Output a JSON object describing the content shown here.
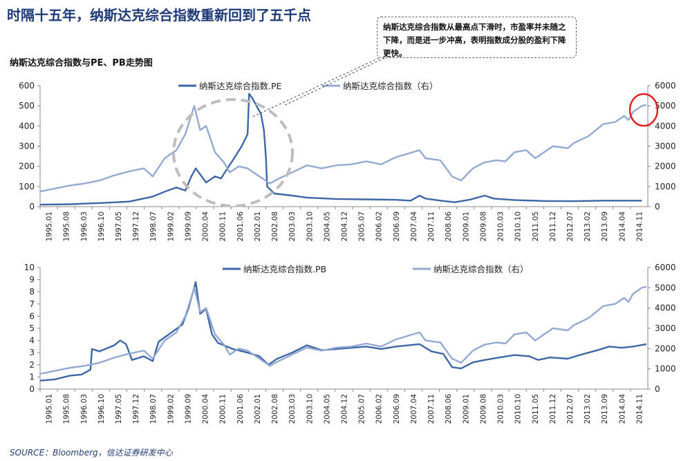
{
  "header": {
    "title": "时隔十五年，纳斯达克综合指数重新回到了五千点",
    "subtitle": "纳斯达克综合指数与PE、PB走势图",
    "callout": "纳斯达克综合指数从最高点下滑时，市盈率并未随之下降，而是进一步冲高，表明指数成分股的盈利下降更快。",
    "source": "SOURCE：Bloomberg，信达证券研发中心"
  },
  "colors": {
    "dark": "#3c66a6",
    "light": "#93a9d2",
    "circle_gray": "#bdbdbd",
    "circle_red": "#e02020"
  },
  "x_ticks": [
    "1995.01",
    "1995.08",
    "1996.03",
    "1996.10",
    "1997.05",
    "1997.12",
    "1998.07",
    "1999.02",
    "1999.09",
    "2000.04",
    "2000.11",
    "2001.06",
    "2002.01",
    "2002.08",
    "2003.03",
    "2003.10",
    "2004.05",
    "2004.12",
    "2005.07",
    "2006.02",
    "2006.09",
    "2007.04",
    "2007.11",
    "2008.06",
    "2009.01",
    "2009.08",
    "2010.03",
    "2010.10",
    "2011.05",
    "2011.12",
    "2012.07",
    "2013.02",
    "2013.09",
    "2014.04",
    "2014.11"
  ],
  "chart_data": [
    {
      "type": "line",
      "legend": [
        "纳斯达克综合指数.PE",
        "纳斯达克综合指数（右）"
      ],
      "y_left": {
        "range": [
          0,
          600
        ],
        "ticks": [
          "0",
          "100",
          "200",
          "300",
          "400",
          "500",
          "600"
        ]
      },
      "y_right": {
        "range": [
          0,
          6000
        ],
        "ticks": [
          "0",
          "1000",
          "2000",
          "3000",
          "4000",
          "5000",
          "6000"
        ]
      },
      "x_range": [
        1995.0,
        2015.5
      ],
      "series": [
        {
          "name": "纳斯达克综合指数.PE",
          "axis": "left",
          "points": [
            [
              1995.0,
              10
            ],
            [
              1996.0,
              12
            ],
            [
              1997.0,
              18
            ],
            [
              1998.0,
              25
            ],
            [
              1998.8,
              50
            ],
            [
              1999.3,
              80
            ],
            [
              1999.6,
              95
            ],
            [
              1999.9,
              80
            ],
            [
              2000.1,
              150
            ],
            [
              2000.25,
              190
            ],
            [
              2000.4,
              160
            ],
            [
              2000.6,
              120
            ],
            [
              2000.9,
              150
            ],
            [
              2001.1,
              140
            ],
            [
              2001.3,
              185
            ],
            [
              2001.5,
              230
            ],
            [
              2001.8,
              300
            ],
            [
              2002.0,
              360
            ],
            [
              2002.05,
              560
            ],
            [
              2002.15,
              540
            ],
            [
              2002.3,
              500
            ],
            [
              2002.45,
              460
            ],
            [
              2002.55,
              380
            ],
            [
              2002.62,
              240
            ],
            [
              2002.66,
              100
            ],
            [
              2002.9,
              65
            ],
            [
              2003.5,
              55
            ],
            [
              2004.0,
              45
            ],
            [
              2005.0,
              38
            ],
            [
              2006.0,
              36
            ],
            [
              2007.0,
              34
            ],
            [
              2007.5,
              30
            ],
            [
              2007.8,
              55
            ],
            [
              2008.0,
              40
            ],
            [
              2008.5,
              30
            ],
            [
              2009.0,
              22
            ],
            [
              2009.5,
              35
            ],
            [
              2010.0,
              55
            ],
            [
              2010.3,
              40
            ],
            [
              2011.0,
              33
            ],
            [
              2012.0,
              28
            ],
            [
              2013.0,
              27
            ],
            [
              2014.0,
              30
            ],
            [
              2015.3,
              30
            ]
          ]
        },
        {
          "name": "纳斯达克综合指数（右）",
          "axis": "right",
          "points": [
            [
              1995.0,
              750
            ],
            [
              1995.5,
              900
            ],
            [
              1996.0,
              1050
            ],
            [
              1996.5,
              1150
            ],
            [
              1997.0,
              1300
            ],
            [
              1997.5,
              1550
            ],
            [
              1998.0,
              1750
            ],
            [
              1998.5,
              1900
            ],
            [
              1998.8,
              1500
            ],
            [
              1999.2,
              2400
            ],
            [
              1999.6,
              2800
            ],
            [
              1999.9,
              3600
            ],
            [
              2000.2,
              5000
            ],
            [
              2000.4,
              3800
            ],
            [
              2000.6,
              4000
            ],
            [
              2000.9,
              2700
            ],
            [
              2001.2,
              2200
            ],
            [
              2001.4,
              1700
            ],
            [
              2001.7,
              2000
            ],
            [
              2002.0,
              1900
            ],
            [
              2002.4,
              1500
            ],
            [
              2002.75,
              1150
            ],
            [
              2003.0,
              1350
            ],
            [
              2003.5,
              1700
            ],
            [
              2004.0,
              2050
            ],
            [
              2004.5,
              1900
            ],
            [
              2005.0,
              2050
            ],
            [
              2005.5,
              2100
            ],
            [
              2006.0,
              2250
            ],
            [
              2006.5,
              2100
            ],
            [
              2007.0,
              2450
            ],
            [
              2007.8,
              2800
            ],
            [
              2008.0,
              2400
            ],
            [
              2008.5,
              2300
            ],
            [
              2008.9,
              1500
            ],
            [
              2009.2,
              1300
            ],
            [
              2009.6,
              1900
            ],
            [
              2010.0,
              2200
            ],
            [
              2010.4,
              2300
            ],
            [
              2010.7,
              2250
            ],
            [
              2011.0,
              2700
            ],
            [
              2011.4,
              2800
            ],
            [
              2011.7,
              2400
            ],
            [
              2012.0,
              2700
            ],
            [
              2012.3,
              3000
            ],
            [
              2012.8,
              2900
            ],
            [
              2013.0,
              3150
            ],
            [
              2013.5,
              3500
            ],
            [
              2014.0,
              4100
            ],
            [
              2014.4,
              4200
            ],
            [
              2014.7,
              4500
            ],
            [
              2014.85,
              4300
            ],
            [
              2015.0,
              4700
            ],
            [
              2015.3,
              5000
            ],
            [
              2015.45,
              5050
            ]
          ]
        }
      ]
    },
    {
      "type": "line",
      "legend": [
        "纳斯达克综合指数.PB",
        "纳斯达克综合指数（右）"
      ],
      "y_left": {
        "range": [
          0,
          10
        ],
        "ticks": [
          "0",
          "1",
          "2",
          "3",
          "4",
          "5",
          "6",
          "7",
          "8",
          "9",
          "10"
        ]
      },
      "y_right": {
        "range": [
          0,
          6000
        ],
        "ticks": [
          "0",
          "1000",
          "2000",
          "3000",
          "4000",
          "5000",
          "6000"
        ]
      },
      "x_range": [
        1995.0,
        2015.5
      ],
      "series": [
        {
          "name": "纳斯达克综合指数.PB",
          "axis": "left",
          "points": [
            [
              1995.0,
              0.7
            ],
            [
              1995.5,
              0.8
            ],
            [
              1996.0,
              1.1
            ],
            [
              1996.4,
              1.2
            ],
            [
              1996.7,
              1.6
            ],
            [
              1996.75,
              3.3
            ],
            [
              1997.0,
              3.1
            ],
            [
              1997.5,
              3.6
            ],
            [
              1997.7,
              4.0
            ],
            [
              1997.9,
              3.7
            ],
            [
              1998.1,
              2.4
            ],
            [
              1998.5,
              2.7
            ],
            [
              1998.8,
              2.3
            ],
            [
              1999.0,
              3.9
            ],
            [
              1999.4,
              4.6
            ],
            [
              1999.8,
              5.3
            ],
            [
              2000.0,
              6.6
            ],
            [
              2000.25,
              8.8
            ],
            [
              2000.4,
              6.2
            ],
            [
              2000.6,
              6.6
            ],
            [
              2000.8,
              4.5
            ],
            [
              2001.0,
              3.8
            ],
            [
              2001.5,
              3.3
            ],
            [
              2002.0,
              3.0
            ],
            [
              2002.4,
              2.7
            ],
            [
              2002.7,
              2.0
            ],
            [
              2003.0,
              2.5
            ],
            [
              2003.5,
              3.0
            ],
            [
              2004.0,
              3.6
            ],
            [
              2004.5,
              3.2
            ],
            [
              2005.0,
              3.3
            ],
            [
              2005.5,
              3.4
            ],
            [
              2006.0,
              3.5
            ],
            [
              2006.5,
              3.3
            ],
            [
              2007.0,
              3.5
            ],
            [
              2007.8,
              3.7
            ],
            [
              2008.2,
              3.1
            ],
            [
              2008.6,
              2.9
            ],
            [
              2008.9,
              1.8
            ],
            [
              2009.2,
              1.7
            ],
            [
              2009.6,
              2.2
            ],
            [
              2010.0,
              2.4
            ],
            [
              2010.5,
              2.6
            ],
            [
              2011.0,
              2.8
            ],
            [
              2011.5,
              2.7
            ],
            [
              2011.8,
              2.4
            ],
            [
              2012.2,
              2.6
            ],
            [
              2012.8,
              2.5
            ],
            [
              2013.2,
              2.8
            ],
            [
              2013.8,
              3.2
            ],
            [
              2014.2,
              3.5
            ],
            [
              2014.6,
              3.4
            ],
            [
              2015.0,
              3.5
            ],
            [
              2015.45,
              3.7
            ]
          ]
        },
        {
          "name": "纳斯达克综合指数（右）",
          "axis": "right",
          "points": [
            [
              1995.0,
              750
            ],
            [
              1995.5,
              900
            ],
            [
              1996.0,
              1050
            ],
            [
              1996.5,
              1150
            ],
            [
              1997.0,
              1300
            ],
            [
              1997.5,
              1550
            ],
            [
              1998.0,
              1750
            ],
            [
              1998.5,
              1900
            ],
            [
              1998.8,
              1500
            ],
            [
              1999.2,
              2400
            ],
            [
              1999.6,
              2800
            ],
            [
              1999.9,
              3600
            ],
            [
              2000.2,
              5000
            ],
            [
              2000.4,
              3800
            ],
            [
              2000.6,
              4000
            ],
            [
              2000.9,
              2700
            ],
            [
              2001.2,
              2200
            ],
            [
              2001.4,
              1700
            ],
            [
              2001.7,
              2000
            ],
            [
              2002.0,
              1900
            ],
            [
              2002.4,
              1500
            ],
            [
              2002.75,
              1150
            ],
            [
              2003.0,
              1350
            ],
            [
              2003.5,
              1700
            ],
            [
              2004.0,
              2050
            ],
            [
              2004.5,
              1900
            ],
            [
              2005.0,
              2050
            ],
            [
              2005.5,
              2100
            ],
            [
              2006.0,
              2250
            ],
            [
              2006.5,
              2100
            ],
            [
              2007.0,
              2450
            ],
            [
              2007.8,
              2800
            ],
            [
              2008.0,
              2400
            ],
            [
              2008.5,
              2300
            ],
            [
              2008.9,
              1500
            ],
            [
              2009.2,
              1300
            ],
            [
              2009.6,
              1900
            ],
            [
              2010.0,
              2200
            ],
            [
              2010.4,
              2300
            ],
            [
              2010.7,
              2250
            ],
            [
              2011.0,
              2700
            ],
            [
              2011.4,
              2800
            ],
            [
              2011.7,
              2400
            ],
            [
              2012.0,
              2700
            ],
            [
              2012.3,
              3000
            ],
            [
              2012.8,
              2900
            ],
            [
              2013.0,
              3150
            ],
            [
              2013.5,
              3500
            ],
            [
              2014.0,
              4100
            ],
            [
              2014.4,
              4200
            ],
            [
              2014.7,
              4500
            ],
            [
              2014.85,
              4300
            ],
            [
              2015.0,
              4700
            ],
            [
              2015.3,
              5000
            ],
            [
              2015.45,
              5050
            ]
          ]
        }
      ]
    }
  ]
}
